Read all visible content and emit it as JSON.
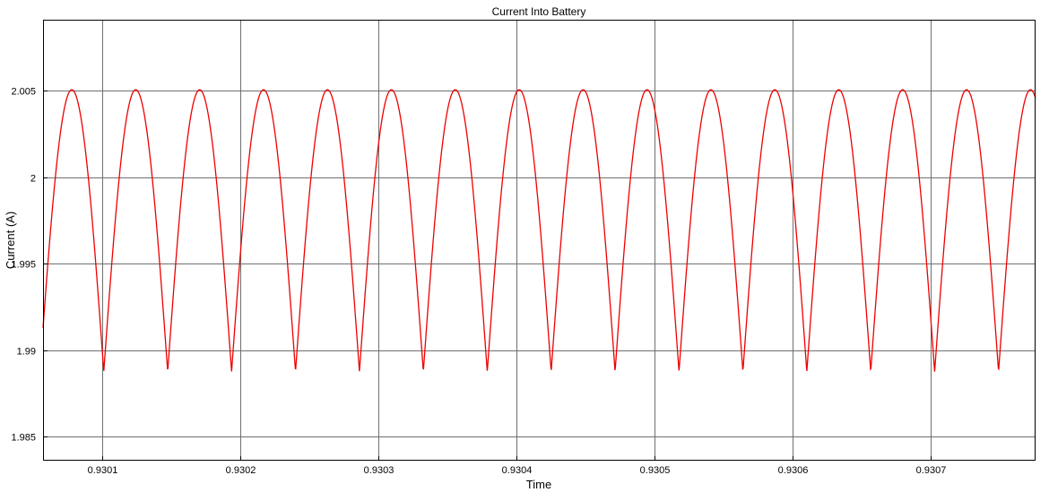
{
  "chart_data": {
    "type": "line",
    "title": "Current Into Battery",
    "xlabel": "Time",
    "ylabel": "Current (A)",
    "xlim": [
      0.930057,
      0.930776
    ],
    "ylim": [
      1.9836,
      2.0091
    ],
    "x_ticks": [
      0.9301,
      0.9302,
      0.9303,
      0.9304,
      0.9305,
      0.9306,
      0.9307
    ],
    "x_tick_labels": [
      "0.9301",
      "0.9302",
      "0.9303",
      "0.9304",
      "0.9305",
      "0.9306",
      "0.9307"
    ],
    "y_ticks": [
      1.985,
      1.99,
      1.995,
      2.0,
      2.005
    ],
    "y_tick_labels": [
      "1.985",
      "1.99",
      "1.995",
      "2",
      "2.005"
    ],
    "grid": true,
    "legend": "none",
    "series": [
      {
        "color": "#ee0000",
        "waveform": "rectified-sinusoidal ripple",
        "period": 4.63e-05,
        "trough_times": [
          0.930101,
          0.930147,
          0.930193,
          0.930239,
          0.930286,
          0.930332,
          0.930378,
          0.930424,
          0.930471,
          0.930517,
          0.930563,
          0.930609,
          0.930656,
          0.930702,
          0.930748
        ],
        "peak_value": 2.00505,
        "trough_value": 1.98875,
        "x_start": 0.930057,
        "y_start": 1.9918
      }
    ]
  }
}
